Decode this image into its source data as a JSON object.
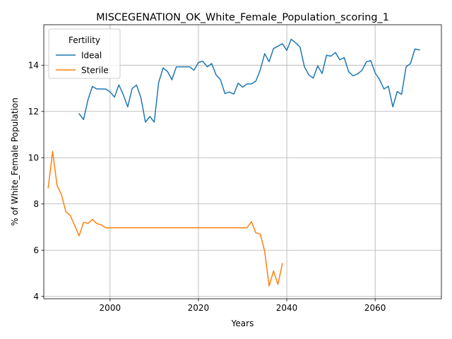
{
  "chart_data": {
    "type": "line",
    "title": "MISCEGENATION_OK_White_Female_Population_scoring_1",
    "xlabel": "Years",
    "ylabel": "% of White_Female Population",
    "xlim": [
      1985,
      2075
    ],
    "ylim": [
      3.9,
      15.75
    ],
    "xticks": [
      2000,
      2020,
      2040,
      2060
    ],
    "yticks": [
      4,
      6,
      8,
      10,
      12,
      14
    ],
    "grid": true,
    "legend": {
      "title": "Fertility",
      "placement": "upper-left"
    },
    "series": [
      {
        "name": "Ideal",
        "color": "#1f77b4",
        "x": [
          1993,
          1994,
          1995,
          1996,
          1997,
          1998,
          1999,
          2000,
          2001,
          2002,
          2003,
          2004,
          2005,
          2006,
          2007,
          2008,
          2009,
          2010,
          2011,
          2012,
          2013,
          2014,
          2015,
          2016,
          2017,
          2018,
          2019,
          2020,
          2021,
          2022,
          2023,
          2024,
          2025,
          2026,
          2027,
          2028,
          2029,
          2030,
          2031,
          2032,
          2033,
          2034,
          2035,
          2036,
          2037,
          2038,
          2039,
          2040,
          2041,
          2042,
          2043,
          2044,
          2045,
          2046,
          2047,
          2048,
          2049,
          2050,
          2051,
          2052,
          2053,
          2054,
          2055,
          2056,
          2057,
          2058,
          2059,
          2060,
          2061,
          2062,
          2063,
          2064,
          2065,
          2066,
          2067,
          2068,
          2069,
          2070
        ],
        "y": [
          11.9,
          11.65,
          12.5,
          13.08,
          12.97,
          12.97,
          12.97,
          12.85,
          12.62,
          13.15,
          12.72,
          12.2,
          12.99,
          13.14,
          12.58,
          11.54,
          11.78,
          11.54,
          13.25,
          13.88,
          13.73,
          13.37,
          13.93,
          13.93,
          13.93,
          13.93,
          13.78,
          14.12,
          14.17,
          13.93,
          14.07,
          13.58,
          13.37,
          12.77,
          12.84,
          12.75,
          13.22,
          13.05,
          13.19,
          13.19,
          13.31,
          13.8,
          14.5,
          14.15,
          14.72,
          14.82,
          14.93,
          14.64,
          15.12,
          14.97,
          14.78,
          13.93,
          13.58,
          13.44,
          13.97,
          13.64,
          14.43,
          14.39,
          14.55,
          14.23,
          14.33,
          13.72,
          13.54,
          13.62,
          13.77,
          14.14,
          14.2,
          13.67,
          13.38,
          12.97,
          13.09,
          12.2,
          12.86,
          12.74,
          13.93,
          14.07,
          14.7,
          14.66
        ]
      },
      {
        "name": "Sterile",
        "color": "#ff7f0e",
        "x": [
          1986,
          1987,
          1988,
          1989,
          1990,
          1991,
          1992,
          1993,
          1994,
          1995,
          1996,
          1997,
          1998,
          1999,
          2000,
          2001,
          2002,
          2003,
          2004,
          2005,
          2006,
          2007,
          2008,
          2009,
          2010,
          2011,
          2012,
          2013,
          2014,
          2015,
          2016,
          2017,
          2018,
          2019,
          2020,
          2021,
          2022,
          2023,
          2024,
          2025,
          2026,
          2027,
          2028,
          2029,
          2030,
          2031,
          2032,
          2033,
          2034,
          2035,
          2036,
          2037,
          2038,
          2039
        ],
        "y": [
          8.7,
          10.27,
          8.8,
          8.4,
          7.66,
          7.5,
          7.07,
          6.62,
          7.2,
          7.16,
          7.33,
          7.15,
          7.1,
          6.97,
          6.97,
          6.97,
          6.97,
          6.97,
          6.97,
          6.97,
          6.97,
          6.97,
          6.97,
          6.97,
          6.97,
          6.97,
          6.97,
          6.97,
          6.97,
          6.97,
          6.97,
          6.97,
          6.97,
          6.97,
          6.97,
          6.97,
          6.97,
          6.97,
          6.97,
          6.97,
          6.97,
          6.97,
          6.97,
          6.97,
          6.97,
          6.97,
          7.23,
          6.75,
          6.7,
          5.95,
          4.45,
          5.1,
          4.52,
          5.42
        ]
      }
    ]
  }
}
